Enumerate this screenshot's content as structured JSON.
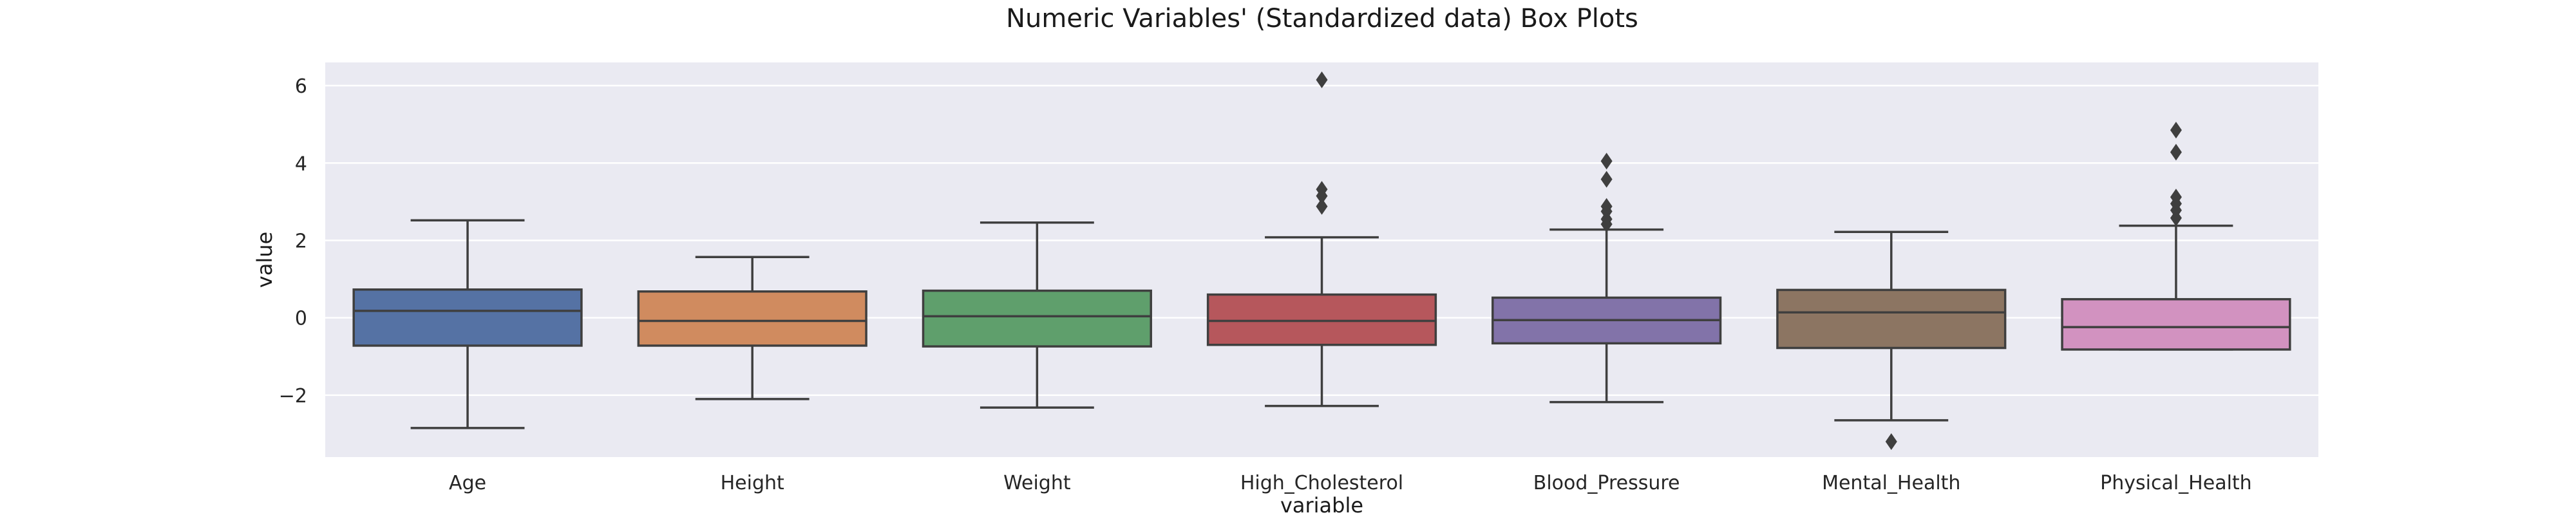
{
  "chart_data": {
    "type": "box",
    "title": "Numeric Variables' (Standardized data) Box Plots",
    "xlabel": "variable",
    "ylabel": "value",
    "ylim": [
      -3.6,
      6.6
    ],
    "yticks": [
      6,
      4,
      2,
      0,
      -2
    ],
    "ytick_labels": [
      "6",
      "4",
      "2",
      "0",
      "−2"
    ],
    "grid": true,
    "background": "#eaeaf2",
    "line_color": "#3f3f3f",
    "categories": [
      "Age",
      "Height",
      "Weight",
      "High_Cholesterol",
      "Blood_Pressure",
      "Mental_Health",
      "Physical_Health"
    ],
    "colors": [
      "#5572a4",
      "#d08b5f",
      "#5f9f6c",
      "#b6575c",
      "#8273a9",
      "#8c7562",
      "#d292c0"
    ],
    "boxes": [
      {
        "name": "Age",
        "whisker_low": -2.85,
        "q1": -0.72,
        "median": 0.18,
        "q3": 0.73,
        "whisker_high": 2.52,
        "outliers": []
      },
      {
        "name": "Height",
        "whisker_low": -2.1,
        "q1": -0.72,
        "median": -0.08,
        "q3": 0.68,
        "whisker_high": 1.57,
        "outliers": []
      },
      {
        "name": "Weight",
        "whisker_low": -2.32,
        "q1": -0.74,
        "median": 0.04,
        "q3": 0.7,
        "whisker_high": 2.46,
        "outliers": []
      },
      {
        "name": "High_Cholesterol",
        "whisker_low": -2.28,
        "q1": -0.7,
        "median": -0.08,
        "q3": 0.6,
        "whisker_high": 2.08,
        "outliers": [
          6.15,
          3.32,
          3.15,
          2.88
        ]
      },
      {
        "name": "Blood_Pressure",
        "whisker_low": -2.18,
        "q1": -0.66,
        "median": -0.06,
        "q3": 0.52,
        "whisker_high": 2.28,
        "outliers": [
          4.05,
          3.58,
          2.88,
          2.75,
          2.55,
          2.42
        ]
      },
      {
        "name": "Mental_Health",
        "whisker_low": -2.65,
        "q1": -0.78,
        "median": 0.14,
        "q3": 0.72,
        "whisker_high": 2.22,
        "outliers": [
          -3.2
        ]
      },
      {
        "name": "Physical_Health",
        "whisker_low": -0.82,
        "q1": -0.82,
        "median": -0.24,
        "q3": 0.48,
        "whisker_high": 2.38,
        "outliers": [
          4.85,
          4.28,
          3.12,
          2.95,
          2.78,
          2.58
        ]
      }
    ]
  }
}
